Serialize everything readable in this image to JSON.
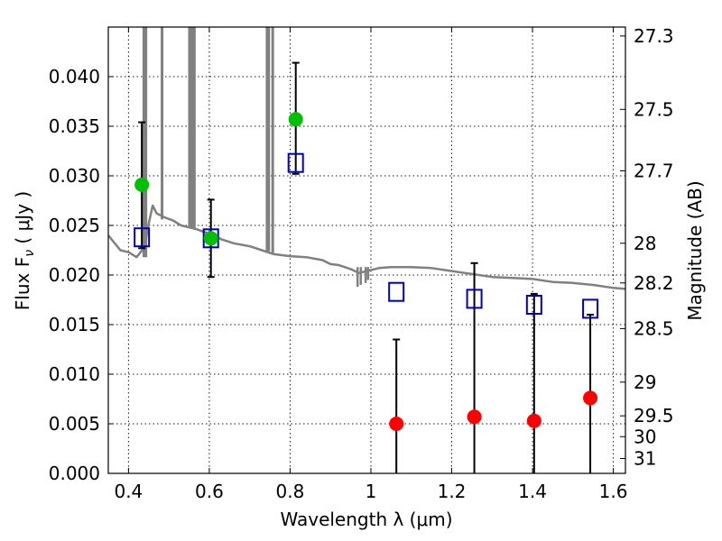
{
  "chart_data": {
    "type": "scatter",
    "xlabel": "Wavelength  λ (μm)",
    "ylabel": "Flux  F",
    "ylabel_sub": "ν",
    "ylabel_unit": "  ( μJy )",
    "y2label": "Magnitude (AB)",
    "xlim": [
      0.35,
      1.63
    ],
    "ylim": [
      0.0,
      0.045
    ],
    "grid": true,
    "x_ticks": [
      0.4,
      0.6,
      0.8,
      1.0,
      1.2,
      1.4,
      1.6
    ],
    "x_tick_labels": [
      "0.4",
      "0.6",
      "0.8",
      "1",
      "1.2",
      "1.4",
      "1.6"
    ],
    "y_ticks": [
      0.0,
      0.005,
      0.01,
      0.015,
      0.02,
      0.025,
      0.03,
      0.035,
      0.04
    ],
    "y_tick_labels": [
      "0.000",
      "0.005",
      "0.010",
      "0.015",
      "0.020",
      "0.025",
      "0.030",
      "0.035",
      "0.040"
    ],
    "mag_ticks": [
      {
        "label": "27.3",
        "flux": 0.0441
      },
      {
        "label": "27.5",
        "flux": 0.0367
      },
      {
        "label": "27.7",
        "flux": 0.0305
      },
      {
        "label": "28",
        "flux": 0.0232
      },
      {
        "label": "28.2",
        "flux": 0.0192
      },
      {
        "label": "28.5",
        "flux": 0.0146
      },
      {
        "label": "29",
        "flux": 0.0092
      },
      {
        "label": "29.5",
        "flux": 0.0058
      },
      {
        "label": "30",
        "flux": 0.0037
      },
      {
        "label": "31",
        "flux": 0.0015
      }
    ],
    "series": [
      {
        "color": "#808080",
        "points": [
          [
            0.35,
            0.024
          ],
          [
            0.38,
            0.0225
          ],
          [
            0.4,
            0.0223
          ],
          [
            0.42,
            0.0218
          ],
          [
            0.44,
            0.0228
          ],
          [
            0.45,
            0.0252
          ],
          [
            0.46,
            0.027
          ],
          [
            0.47,
            0.0262
          ],
          [
            0.49,
            0.0258
          ],
          [
            0.51,
            0.0255
          ],
          [
            0.53,
            0.025
          ],
          [
            0.55,
            0.0248
          ],
          [
            0.57,
            0.0246
          ],
          [
            0.59,
            0.0243
          ],
          [
            0.61,
            0.024
          ],
          [
            0.63,
            0.0236
          ],
          [
            0.66,
            0.0232
          ],
          [
            0.7,
            0.0229
          ],
          [
            0.73,
            0.0225
          ],
          [
            0.76,
            0.0221
          ],
          [
            0.8,
            0.0219
          ],
          [
            0.84,
            0.0218
          ],
          [
            0.88,
            0.0215
          ],
          [
            0.9,
            0.0211
          ],
          [
            0.92,
            0.021
          ],
          [
            0.95,
            0.0206
          ],
          [
            0.97,
            0.0202
          ],
          [
            0.99,
            0.0204
          ],
          [
            1.02,
            0.0207
          ],
          [
            1.05,
            0.0208
          ],
          [
            1.1,
            0.0208
          ],
          [
            1.15,
            0.0207
          ],
          [
            1.2,
            0.0204
          ],
          [
            1.25,
            0.0201
          ],
          [
            1.3,
            0.0198
          ],
          [
            1.35,
            0.0197
          ],
          [
            1.4,
            0.0196
          ],
          [
            1.45,
            0.0193
          ],
          [
            1.5,
            0.0192
          ],
          [
            1.55,
            0.019
          ],
          [
            1.6,
            0.0187
          ],
          [
            1.63,
            0.0186
          ]
        ],
        "spikes": [
          [
            0.438,
            0.0218
          ],
          [
            0.443,
            0.0218
          ],
          [
            0.483,
            0.0256
          ],
          [
            0.551,
            0.0249
          ],
          [
            0.556,
            0.0248
          ],
          [
            0.56,
            0.0247
          ],
          [
            0.563,
            0.0247
          ],
          [
            0.743,
            0.0224
          ],
          [
            0.747,
            0.0224
          ],
          [
            0.757,
            0.0222
          ]
        ],
        "dips": [
          [
            0.967,
            0.0188
          ],
          [
            0.975,
            0.019
          ],
          [
            0.987,
            0.0192
          ],
          [
            0.993,
            0.0195
          ]
        ]
      },
      {
        "color": "#00c000",
        "points": [
          [
            0.433,
            0.0291
          ],
          [
            0.604,
            0.0237
          ],
          [
            0.814,
            0.0357
          ]
        ],
        "err": [
          [
            0.0227,
            0.0354
          ],
          [
            0.0198,
            0.0276
          ],
          [
            0.0302,
            0.0414
          ]
        ]
      },
      {
        "color": "#ff0000",
        "points": [
          [
            1.063,
            0.005
          ],
          [
            1.256,
            0.0057
          ],
          [
            1.404,
            0.0053
          ],
          [
            1.543,
            0.0076
          ]
        ],
        "err": [
          [
            0.0,
            0.0135
          ],
          [
            0.0,
            0.0212
          ],
          [
            0.0,
            0.0181
          ],
          [
            0.0,
            0.016
          ]
        ]
      },
      {
        "color": "#0000c0",
        "points": [
          [
            0.433,
            0.0238
          ],
          [
            0.604,
            0.0237
          ],
          [
            0.814,
            0.0313
          ],
          [
            1.063,
            0.0183
          ],
          [
            1.256,
            0.0176
          ],
          [
            1.404,
            0.017
          ],
          [
            1.543,
            0.0166
          ]
        ]
      }
    ]
  }
}
